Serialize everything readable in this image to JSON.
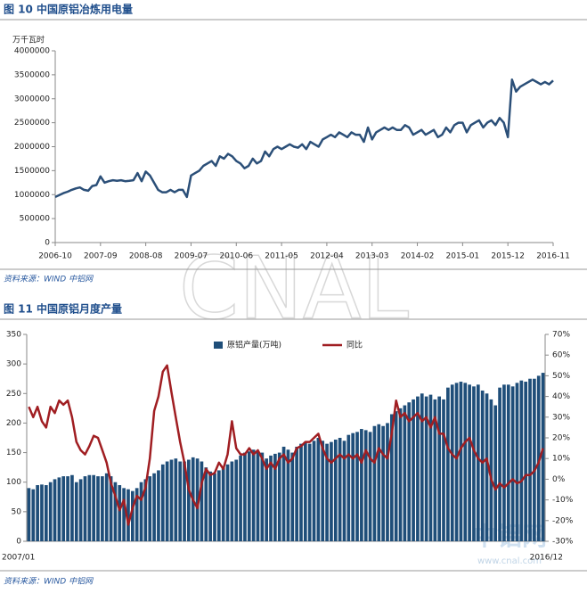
{
  "chart_data": [
    {
      "type": "line",
      "title": "图 10 中国原铝冶炼用电量",
      "y_label": "万千瓦时",
      "source": "资料来源：WIND 中铝网",
      "color": "#2b4f78",
      "categories": [
        "2006-10",
        null,
        null,
        null,
        null,
        null,
        null,
        null,
        null,
        null,
        null,
        "2007-09",
        null,
        null,
        null,
        null,
        null,
        null,
        null,
        null,
        null,
        null,
        "2008-08",
        null,
        null,
        null,
        null,
        null,
        null,
        null,
        null,
        null,
        null,
        "2009-07",
        null,
        null,
        null,
        null,
        null,
        null,
        null,
        null,
        null,
        null,
        "2010-06",
        null,
        null,
        null,
        null,
        null,
        null,
        null,
        null,
        null,
        null,
        "2011-05",
        null,
        null,
        null,
        null,
        null,
        null,
        null,
        null,
        null,
        null,
        "2012-04",
        null,
        null,
        null,
        null,
        null,
        null,
        null,
        null,
        null,
        null,
        "2013-03",
        null,
        null,
        null,
        null,
        null,
        null,
        null,
        null,
        null,
        null,
        "2014-02",
        null,
        null,
        null,
        null,
        null,
        null,
        null,
        null,
        null,
        null,
        "2015-01",
        null,
        null,
        null,
        null,
        null,
        null,
        null,
        null,
        null,
        null,
        "2015-12",
        null,
        null,
        null,
        null,
        null,
        null,
        null,
        null,
        null,
        null,
        "2016-11"
      ],
      "values": [
        950000,
        990000,
        1030000,
        1060000,
        1100000,
        1130000,
        1150000,
        1100000,
        1080000,
        1180000,
        1200000,
        1380000,
        1250000,
        1280000,
        1300000,
        1290000,
        1300000,
        1280000,
        1290000,
        1300000,
        1450000,
        1280000,
        1480000,
        1400000,
        1250000,
        1100000,
        1050000,
        1050000,
        1100000,
        1050000,
        1100000,
        1100000,
        950000,
        1400000,
        1450000,
        1500000,
        1600000,
        1650000,
        1700000,
        1600000,
        1800000,
        1750000,
        1850000,
        1800000,
        1700000,
        1650000,
        1550000,
        1600000,
        1750000,
        1650000,
        1700000,
        1900000,
        1800000,
        1950000,
        2000000,
        1950000,
        2000000,
        2050000,
        2000000,
        1980000,
        2050000,
        1950000,
        2100000,
        2050000,
        2000000,
        2150000,
        2200000,
        2250000,
        2200000,
        2300000,
        2250000,
        2200000,
        2300000,
        2250000,
        2250000,
        2100000,
        2400000,
        2150000,
        2300000,
        2350000,
        2400000,
        2350000,
        2400000,
        2350000,
        2350000,
        2450000,
        2400000,
        2250000,
        2300000,
        2350000,
        2250000,
        2300000,
        2350000,
        2200000,
        2250000,
        2400000,
        2300000,
        2450000,
        2500000,
        2500000,
        2300000,
        2450000,
        2500000,
        2550000,
        2400000,
        2500000,
        2550000,
        2450000,
        2600000,
        2500000,
        2200000,
        3400000,
        3150000,
        3250000,
        3300000,
        3350000,
        3400000,
        3350000,
        3300000,
        3350000,
        3300000,
        3380000
      ],
      "ylim": [
        0,
        4000000
      ],
      "yticks": [
        0,
        500000,
        1000000,
        1500000,
        2000000,
        2500000,
        3000000,
        3500000,
        4000000
      ]
    },
    {
      "type": "bar",
      "title": "图 11 中国原铝月度产量",
      "source": "资料来源：WIND 中铝网",
      "categories": [
        "2007/01",
        null,
        null,
        null,
        null,
        null,
        null,
        null,
        null,
        null,
        null,
        null,
        null,
        null,
        null,
        null,
        null,
        null,
        null,
        null,
        null,
        null,
        null,
        null,
        null,
        null,
        null,
        null,
        null,
        null,
        null,
        null,
        null,
        null,
        null,
        null,
        null,
        null,
        null,
        null,
        null,
        null,
        null,
        null,
        null,
        null,
        null,
        null,
        null,
        null,
        null,
        null,
        null,
        null,
        null,
        null,
        null,
        null,
        null,
        null,
        null,
        null,
        null,
        null,
        null,
        null,
        null,
        null,
        null,
        null,
        null,
        null,
        null,
        null,
        null,
        null,
        null,
        null,
        null,
        null,
        null,
        null,
        null,
        null,
        null,
        null,
        null,
        null,
        null,
        null,
        null,
        null,
        null,
        null,
        null,
        null,
        null,
        null,
        null,
        null,
        null,
        null,
        null,
        null,
        null,
        null,
        null,
        null,
        null,
        null,
        null,
        null,
        null,
        null,
        null,
        null,
        null,
        null,
        null,
        "2016/12"
      ],
      "series": [
        {
          "name": "原铝产量(万吨)",
          "type": "bar",
          "color": "#1f4e79",
          "values": [
            90,
            88,
            95,
            96,
            95,
            100,
            105,
            108,
            110,
            110,
            112,
            100,
            105,
            110,
            112,
            112,
            110,
            110,
            115,
            110,
            100,
            95,
            90,
            88,
            85,
            90,
            100,
            105,
            110,
            115,
            120,
            130,
            135,
            138,
            140,
            135,
            135,
            138,
            142,
            140,
            135,
            125,
            118,
            115,
            120,
            125,
            130,
            135,
            138,
            145,
            150,
            152,
            155,
            152,
            150,
            140,
            145,
            148,
            150,
            160,
            155,
            150,
            160,
            165,
            168,
            165,
            170,
            175,
            170,
            165,
            168,
            172,
            175,
            170,
            180,
            183,
            185,
            190,
            188,
            185,
            195,
            198,
            195,
            200,
            215,
            220,
            225,
            230,
            235,
            240,
            245,
            250,
            245,
            248,
            240,
            245,
            240,
            260,
            265,
            268,
            270,
            268,
            265,
            262,
            265,
            255,
            250,
            240,
            230,
            260,
            265,
            265,
            262,
            268,
            272,
            270,
            275,
            275,
            280,
            285
          ]
        },
        {
          "name": "同比",
          "type": "line",
          "axis": "y2",
          "color": "#a01e22",
          "values": [
            35,
            30,
            35,
            28,
            25,
            35,
            32,
            38,
            36,
            38,
            30,
            18,
            14,
            12,
            16,
            21,
            20,
            14,
            8,
            -2,
            -8,
            -15,
            -10,
            -22,
            -14,
            -8,
            -10,
            -4,
            10,
            33,
            40,
            52,
            55,
            42,
            30,
            18,
            8,
            -5,
            -10,
            -14,
            -2,
            5,
            2,
            3,
            8,
            5,
            12,
            28,
            15,
            12,
            12,
            15,
            12,
            14,
            10,
            5,
            8,
            5,
            10,
            12,
            8,
            10,
            15,
            16,
            18,
            18,
            20,
            22,
            15,
            10,
            8,
            10,
            12,
            10,
            12,
            10,
            12,
            8,
            14,
            10,
            8,
            15,
            12,
            10,
            22,
            38,
            30,
            32,
            28,
            30,
            32,
            28,
            30,
            25,
            30,
            22,
            22,
            15,
            12,
            10,
            15,
            18,
            20,
            14,
            10,
            8,
            10,
            0,
            -5,
            -2,
            -4,
            -2,
            0,
            -2,
            -1,
            2,
            2,
            4,
            8,
            15
          ]
        }
      ],
      "ylim": [
        0,
        350
      ],
      "yticks": [
        0,
        50,
        100,
        150,
        200,
        250,
        300,
        350
      ],
      "y2lim": [
        -30,
        70
      ],
      "y2ticks": [
        {
          "value": -30,
          "label": "-30%"
        },
        {
          "value": -20,
          "label": "-20%"
        },
        {
          "value": -10,
          "label": "-10%"
        },
        {
          "value": 0,
          "label": "0%"
        },
        {
          "value": 10,
          "label": "10%"
        },
        {
          "value": 20,
          "label": "20%"
        },
        {
          "value": 30,
          "label": "30%"
        },
        {
          "value": 40,
          "label": "40%"
        },
        {
          "value": 50,
          "label": "50%"
        },
        {
          "value": 60,
          "label": "60%"
        },
        {
          "value": 70,
          "label": "70%"
        }
      ]
    }
  ],
  "watermark": {
    "logo": "CNAL",
    "site_name": "中铝网",
    "url": "www.cnal.com"
  }
}
